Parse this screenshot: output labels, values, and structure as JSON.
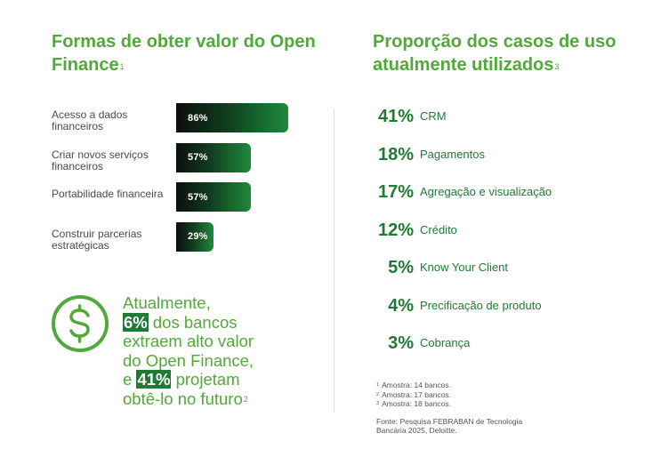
{
  "left_title": {
    "text": "Formas de obter valor do Open Finance",
    "note": "1"
  },
  "right_title": {
    "text": "Proporção dos casos de uso atualmente utilizados",
    "note": "3"
  },
  "chart_data": [
    {
      "type": "bar",
      "orientation": "horizontal",
      "title": "Formas de obter valor do Open Finance",
      "categories": [
        "Acesso a dados financeiros",
        "Criar novos serviços financeiros",
        "Portabilidade financeira",
        "Construir parcerias estratégicas"
      ],
      "values": [
        86,
        57,
        57,
        29
      ],
      "value_labels": [
        "86%",
        "57%",
        "57%",
        "29%"
      ],
      "xlim": [
        0,
        100
      ],
      "grid": false
    },
    {
      "type": "table",
      "title": "Proporção dos casos de uso atualmente utilizados",
      "categories": [
        "CRM",
        "Pagamentos",
        "Agregação e visualização",
        "Crédito",
        "Know Your Client",
        "Precificação de produto",
        "Cobrança"
      ],
      "values": [
        41,
        18,
        17,
        12,
        5,
        4,
        3
      ],
      "value_labels": [
        "41%",
        "18%",
        "17%",
        "12%",
        "5%",
        "4%",
        "3%"
      ]
    }
  ],
  "highlight": {
    "line1": "Atualmente,",
    "pct1": "6%",
    "after1": " dos bancos",
    "line3": "extraem alto valor",
    "line4": "do Open Finance,",
    "before2": "e ",
    "pct2": "41%",
    "after2": " projetam",
    "line6": "obtê-lo no futuro",
    "note": "2"
  },
  "footnotes": [
    {
      "mark": "1",
      "text": "Amostra: 14 bancos."
    },
    {
      "mark": "2",
      "text": "Amostra: 17 bancos."
    },
    {
      "mark": "3",
      "text": "Amostra: 18 bancos."
    }
  ],
  "source": "Fonte: Pesquisa FEBRABAN de Tecnologia Bancária 2025, Deloitte.",
  "icon": "dollar-circle-icon",
  "colors": {
    "title_green": "#52a83a",
    "dark_green": "#1e7a34",
    "bar_start": "#0d0d0d",
    "bar_end": "#1f8a3c"
  }
}
